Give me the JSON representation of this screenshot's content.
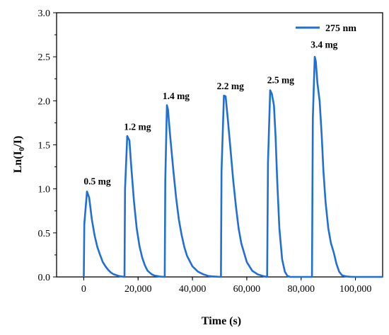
{
  "chart_data": {
    "type": "line",
    "xlabel": "Time (s)",
    "ylabel_parts": [
      "Ln(I",
      "0",
      "/I)"
    ],
    "xlim": [
      -10000,
      110000
    ],
    "ylim": [
      0,
      3.0
    ],
    "x_ticks": [
      0,
      20000,
      40000,
      60000,
      80000,
      100000
    ],
    "x_tick_labels": [
      "0",
      "20,000",
      "40,000",
      "60,000",
      "80,000",
      "100,000"
    ],
    "y_ticks": [
      0,
      0.5,
      1.0,
      1.5,
      2.0,
      2.5,
      3.0
    ],
    "y_tick_labels": [
      "0.0",
      "0.5",
      "1.0",
      "1.5",
      "2.0",
      "2.5",
      "3.0"
    ],
    "grid": false,
    "legend_position": "top-right",
    "series": [
      {
        "name": "275 nm",
        "color": "#1f6fd6",
        "x": [
          0,
          20,
          200,
          1200,
          2000,
          3000,
          4000,
          5000,
          6000,
          7000,
          8000,
          9000,
          10000,
          11000,
          12000,
          13000,
          14000,
          15000,
          15000,
          15200,
          16000,
          16800,
          17500,
          18500,
          19500,
          20500,
          21500,
          22500,
          23500,
          25000,
          26000,
          28000,
          29800,
          29800,
          30000,
          30600,
          31000,
          31800,
          33000,
          34000,
          35000,
          36000,
          37000,
          38000,
          40000,
          42000,
          44000,
          46000,
          48000,
          50500,
          50500,
          50700,
          51600,
          52200,
          53000,
          54000,
          55000,
          56000,
          57000,
          58000,
          60000,
          62000,
          64000,
          66000,
          67500,
          67500,
          67800,
          68600,
          69200,
          70000,
          70600,
          71200,
          72000,
          73000,
          74000,
          75000,
          76000,
          84000,
          84300,
          85000,
          85400,
          86000,
          86800,
          87600,
          88200,
          89000,
          90000,
          91000,
          92000,
          93000,
          94000,
          95000,
          96000,
          97000,
          98000,
          100000,
          110000
        ],
        "y": [
          0,
          0.02,
          0.6,
          0.97,
          0.9,
          0.65,
          0.47,
          0.34,
          0.25,
          0.17,
          0.12,
          0.08,
          0.05,
          0.03,
          0.02,
          0.01,
          0.005,
          0,
          0,
          1.0,
          1.6,
          1.55,
          1.25,
          0.85,
          0.55,
          0.35,
          0.22,
          0.13,
          0.07,
          0.03,
          0.015,
          0.005,
          0,
          0,
          1.1,
          1.95,
          1.9,
          1.6,
          1.2,
          0.9,
          0.65,
          0.48,
          0.34,
          0.24,
          0.12,
          0.06,
          0.03,
          0.01,
          0.005,
          0,
          0,
          1.2,
          2.06,
          2.05,
          1.8,
          1.45,
          1.1,
          0.8,
          0.55,
          0.38,
          0.17,
          0.07,
          0.03,
          0.01,
          0,
          0,
          1.3,
          2.12,
          2.08,
          1.95,
          1.6,
          1.1,
          0.55,
          0.2,
          0.06,
          0.01,
          0,
          0,
          1.8,
          2.5,
          2.45,
          2.2,
          2.0,
          1.6,
          1.2,
          0.85,
          0.55,
          0.38,
          0.28,
          0.15,
          0.06,
          0.02,
          0.01,
          0.005,
          0.002,
          0,
          0
        ]
      }
    ],
    "annotations": [
      {
        "text": "0.5 mg",
        "x": 0,
        "y": 1.05
      },
      {
        "text": "1.2 mg",
        "x": 14800,
        "y": 1.67
      },
      {
        "text": "1.4 mg",
        "x": 29000,
        "y": 2.02
      },
      {
        "text": "2.2 mg",
        "x": 49000,
        "y": 2.13
      },
      {
        "text": "2.5 mg",
        "x": 67500,
        "y": 2.2
      },
      {
        "text": "3.4 mg",
        "x": 83500,
        "y": 2.6
      }
    ]
  }
}
